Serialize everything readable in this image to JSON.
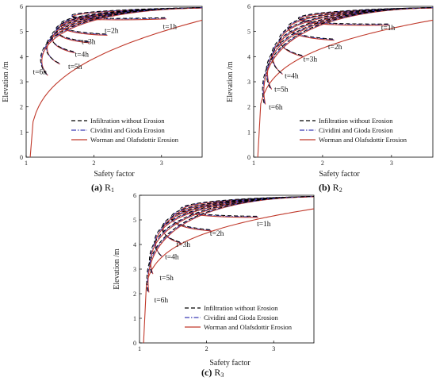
{
  "colors": {
    "infiltration": "#000000",
    "cividini": "#3b3bb5",
    "worman": "#c0392b",
    "axis": "#000000"
  },
  "chart_data": [
    {
      "type": "line",
      "caption_letter": "(a)",
      "caption_text": "R",
      "caption_sub": "1",
      "xlabel": "Safety factor",
      "ylabel": "Elevation /m",
      "xlim": [
        1,
        3.6
      ],
      "ylim": [
        0,
        6
      ],
      "xticks": [
        "1",
        "2",
        "3"
      ],
      "yticks": [
        "0",
        "1",
        "2",
        "3",
        "4",
        "5",
        "6"
      ],
      "legend": {
        "placement": "bottom-right",
        "entries": [
          "Infiltration without Erosion",
          "Cividini and Gioda  Erosion",
          "Worman and Olafsdottir Erosion"
        ]
      },
      "envelope": {
        "x0": 1.06,
        "x1": 3.6,
        "y0": 0,
        "y1": 5.45,
        "p": 0.33
      },
      "top": {
        "x": 3.6,
        "y": 5.95
      },
      "times": [
        {
          "label": "t=1h",
          "xb": 3.05,
          "yb": 5.55,
          "label_x": 3.02,
          "label_y": 5.1
        },
        {
          "label": "t=2h",
          "xb": 2.18,
          "yb": 4.9,
          "label_x": 2.16,
          "label_y": 4.95
        },
        {
          "label": "t=3h",
          "xb": 1.92,
          "yb": 4.6,
          "label_x": 1.82,
          "label_y": 4.5
        },
        {
          "label": "t=4h",
          "xb": 1.7,
          "yb": 4.2,
          "label_x": 1.72,
          "label_y": 4.0
        },
        {
          "label": "t=5h",
          "xb": 1.48,
          "yb": 3.75,
          "label_x": 1.62,
          "label_y": 3.5
        },
        {
          "label": "t=6h",
          "xb": 1.3,
          "yb": 3.3,
          "label_x": 1.1,
          "label_y": 3.3
        }
      ]
    },
    {
      "type": "line",
      "caption_letter": "(b)",
      "caption_text": "R",
      "caption_sub": "2",
      "xlabel": "Safety factor",
      "ylabel": "Elevation /m",
      "xlim": [
        1,
        3.6
      ],
      "ylim": [
        0,
        6
      ],
      "xticks": [
        "1",
        "2",
        "3"
      ],
      "yticks": [
        "0",
        "1",
        "2",
        "3",
        "4",
        "5",
        "6"
      ],
      "legend": {
        "placement": "bottom-right",
        "entries": [
          "Infiltration without Erosion",
          "Cividini and Gioda  Erosion",
          "Worman and Olafsdottir Erosion"
        ]
      },
      "envelope": {
        "x0": 1.06,
        "x1": 3.6,
        "y0": 0,
        "y1": 5.45,
        "p": 0.23
      },
      "top": {
        "x": 3.6,
        "y": 5.95
      },
      "times": [
        {
          "label": "t=1h",
          "xb": 2.95,
          "yb": 5.3,
          "label_x": 2.85,
          "label_y": 5.05
        },
        {
          "label": "t=2h",
          "xb": 2.15,
          "yb": 4.7,
          "label_x": 2.08,
          "label_y": 4.3
        },
        {
          "label": "t=3h",
          "xb": 1.7,
          "yb": 4.05,
          "label_x": 1.72,
          "label_y": 3.8
        },
        {
          "label": "t=4h",
          "xb": 1.4,
          "yb": 3.35,
          "label_x": 1.45,
          "label_y": 3.15
        },
        {
          "label": "t=5h",
          "xb": 1.24,
          "yb": 2.75,
          "label_x": 1.3,
          "label_y": 2.6
        },
        {
          "label": "t=6h",
          "xb": 1.15,
          "yb": 2.15,
          "label_x": 1.22,
          "label_y": 1.9
        }
      ]
    },
    {
      "type": "line",
      "caption_letter": "(c)",
      "caption_text": "R",
      "caption_sub": "3",
      "xlabel": "Safety factor",
      "ylabel": "Elevation /m",
      "xlim": [
        1,
        3.6
      ],
      "ylim": [
        0,
        6
      ],
      "xticks": [
        "1",
        "2",
        "3"
      ],
      "yticks": [
        "0",
        "1",
        "2",
        "3",
        "4",
        "5",
        "6"
      ],
      "legend": {
        "placement": "bottom-right",
        "entries": [
          "Infiltration without Erosion",
          "Cividini and Gioda  Erosion",
          "Worman and Olafsdottir Erosion"
        ]
      },
      "envelope": {
        "x0": 1.06,
        "x1": 3.6,
        "y0": 0,
        "y1": 5.45,
        "p": 0.2
      },
      "top": {
        "x": 3.6,
        "y": 5.95
      },
      "times": [
        {
          "label": "t=1h",
          "xb": 2.75,
          "yb": 5.15,
          "label_x": 2.75,
          "label_y": 4.75
        },
        {
          "label": "t=2h",
          "xb": 2.05,
          "yb": 4.6,
          "label_x": 2.05,
          "label_y": 4.35
        },
        {
          "label": "t=3h",
          "xb": 1.6,
          "yb": 4.1,
          "label_x": 1.55,
          "label_y": 3.9
        },
        {
          "label": "t=4h",
          "xb": 1.32,
          "yb": 3.55,
          "label_x": 1.38,
          "label_y": 3.4
        },
        {
          "label": "t=5h",
          "xb": 1.18,
          "yb": 2.85,
          "label_x": 1.3,
          "label_y": 2.55
        },
        {
          "label": "t=6h",
          "xb": 1.12,
          "yb": 2.1,
          "label_x": 1.22,
          "label_y": 1.65
        }
      ]
    }
  ]
}
